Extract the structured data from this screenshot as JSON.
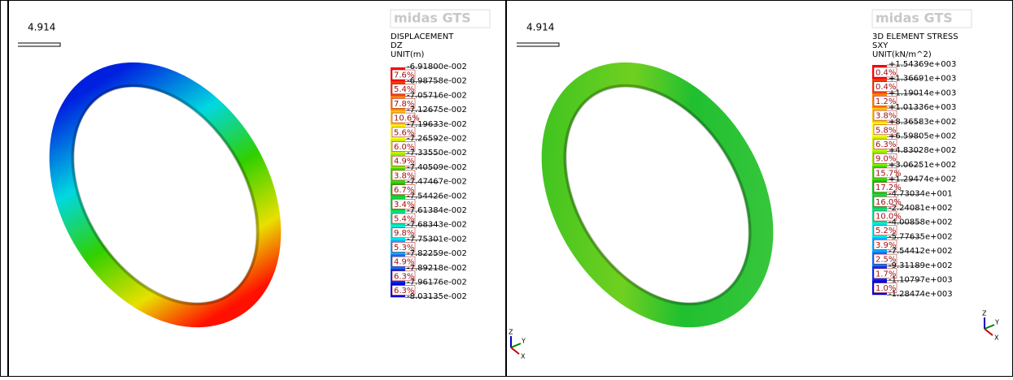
{
  "panels": [
    {
      "scale_label": "4.914",
      "logo": "midas GTS",
      "legend": {
        "title": [
          "DISPLACEMENT",
          "DZ",
          "UNIT(m)"
        ],
        "percentages": [
          "7.6%",
          "5.4%",
          "7.8%",
          "10.6%",
          "5.6%",
          "6.0%",
          "4.9%",
          "3.8%",
          "6.7%",
          "3.4%",
          "5.4%",
          "9.8%",
          "5.3%",
          "4.9%",
          "6.3%",
          "6.3%"
        ],
        "values": [
          "-6.91800e-002",
          "-6.98758e-002",
          "-7.05716e-002",
          "-7.12675e-002",
          "-7.19633e-002",
          "-7.26592e-002",
          "-7.33550e-002",
          "-7.40509e-002",
          "-7.47467e-002",
          "-7.54426e-002",
          "-7.61384e-002",
          "-7.68343e-002",
          "-7.75301e-002",
          "-7.82259e-002",
          "-7.89218e-002",
          "-7.96176e-002",
          "-8.03135e-002"
        ],
        "colors": [
          "#ff0000",
          "#f03c10",
          "#ff8000",
          "#ffc000",
          "#ffff00",
          "#c8f000",
          "#90e800",
          "#40d800",
          "#00d000",
          "#00d840",
          "#00e0a0",
          "#00e8e8",
          "#00b0ff",
          "#0070ff",
          "#0030f0",
          "#0000e0"
        ]
      }
    },
    {
      "scale_label": "4.914",
      "logo": "midas GTS",
      "legend": {
        "title": [
          "3D ELEMENT STRESS",
          "SXY",
          "UNIT(kN/m^2)"
        ],
        "percentages": [
          "0.4%",
          "0.4%",
          "1.2%",
          "3.8%",
          "5.8%",
          "6.3%",
          "9.0%",
          "15.7%",
          "17.2%",
          "16.0%",
          "10.0%",
          "5.2%",
          "3.9%",
          "2.5%",
          "1.7%",
          "1.0%"
        ],
        "values": [
          "+1.54369e+003",
          "+1.36691e+003",
          "+1.19014e+003",
          "+1.01336e+003",
          "+8.36583e+002",
          "+6.59805e+002",
          "+4.83028e+002",
          "+3.06251e+002",
          "+1.29474e+002",
          "-4.73034e+001",
          "-2.24081e+002",
          "-4.00858e+002",
          "-5.77635e+002",
          "-7.54412e+002",
          "-9.31189e+002",
          "-1.10797e+003",
          "-1.28474e+003"
        ],
        "colors": [
          "#ff0000",
          "#f03c10",
          "#ff8000",
          "#ffc000",
          "#ffff00",
          "#c8f000",
          "#90e800",
          "#40d800",
          "#00d000",
          "#00d840",
          "#00e0a0",
          "#00e8e8",
          "#00b0ff",
          "#0070ff",
          "#0030f0",
          "#0000e0"
        ]
      }
    }
  ],
  "triads": [
    [
      "Z",
      "Y",
      "X"
    ],
    [
      "Z",
      "Y",
      "X"
    ]
  ]
}
